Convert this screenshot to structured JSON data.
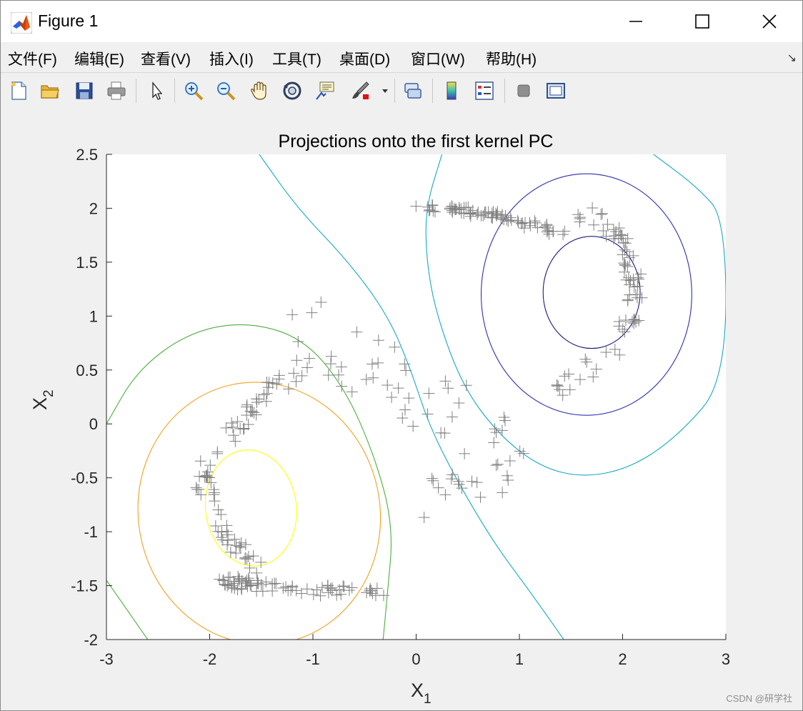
{
  "window": {
    "title": "Figure 1"
  },
  "menu": [
    "文件(F)",
    "编辑(E)",
    "查看(V)",
    "插入(I)",
    "工具(T)",
    "桌面(D)",
    "窗口(W)",
    "帮助(H)"
  ],
  "toolbar": {
    "buttons": [
      "new-figure",
      "open-file",
      "save-figure",
      "print-figure",
      "edit-plot",
      "zoom-in",
      "zoom-out",
      "pan",
      "rotate-3d",
      "data-cursor",
      "brush",
      "link-plot",
      "colorbar",
      "legend",
      "hide-plot-tools",
      "show-plot-tools"
    ]
  },
  "chart_data": {
    "type": "scatter",
    "title": "Projections onto the first kernel PC",
    "xlabel": "X",
    "xlabel_sub": "1",
    "ylabel": "X",
    "ylabel_sub": "2",
    "xlim": [
      -3,
      3
    ],
    "ylim": [
      -2,
      2.5
    ],
    "xticks": [
      -3,
      -2,
      -1,
      0,
      1,
      2,
      3
    ],
    "yticks": [
      -2,
      -1.5,
      -1,
      -0.5,
      0,
      0.5,
      1,
      1.5,
      2,
      2.5
    ],
    "xtick_labels": [
      "-3",
      "-2",
      "-1",
      "0",
      "1",
      "2",
      "3"
    ],
    "ytick_labels": [
      "-2",
      "-1.5",
      "-1",
      "-0.5",
      "0",
      "0.5",
      "1",
      "1.5",
      "2",
      "2.5"
    ],
    "grid": false,
    "marker": "+",
    "marker_color": "#808080",
    "contours": [
      {
        "shape": "ellipse",
        "cx": -1.6,
        "cy": -0.78,
        "rx": 0.44,
        "ry": 0.54,
        "tilt": -8,
        "color": "#ffff00"
      },
      {
        "shape": "ellipse",
        "cx": -1.52,
        "cy": -0.83,
        "rx": 1.17,
        "ry": 1.22,
        "tilt": -12,
        "color": "#f0a020"
      },
      {
        "shape": "curve",
        "color": "#4caf3c",
        "points": [
          [
            -3,
            -1.45
          ],
          [
            -2.6,
            -2
          ],
          [
            -3,
            0
          ],
          [
            -2.7,
            0.5
          ],
          [
            -2.2,
            0.85
          ],
          [
            -1.65,
            0.95
          ],
          [
            -1.1,
            0.8
          ],
          [
            -0.7,
            0.35
          ],
          [
            -0.4,
            -0.3
          ],
          [
            -0.22,
            -0.95
          ],
          [
            -0.28,
            -1.6
          ],
          [
            -0.32,
            -2
          ]
        ]
      },
      {
        "shape": "curve",
        "color": "#17a9c2",
        "points": [
          [
            -1.52,
            2.5
          ],
          [
            -1.15,
            2.0
          ],
          [
            -0.65,
            1.5
          ],
          [
            -0.27,
            1.0
          ],
          [
            -0.05,
            0.5
          ],
          [
            0.12,
            0.0
          ],
          [
            0.38,
            -0.5
          ],
          [
            0.75,
            -1.1
          ],
          [
            1.1,
            -1.55
          ],
          [
            1.43,
            -2.0
          ]
        ]
      },
      {
        "shape": "curve",
        "color": "#17a9c2",
        "points": [
          [
            0.25,
            2.5
          ],
          [
            0.09,
            2.0
          ],
          [
            0.1,
            1.5
          ],
          [
            0.2,
            1.0
          ],
          [
            0.45,
            0.35
          ],
          [
            0.8,
            -0.1
          ],
          [
            1.2,
            -0.4
          ],
          [
            1.63,
            -0.5
          ],
          [
            2.1,
            -0.4
          ],
          [
            2.55,
            -0.1
          ],
          [
            3.0,
            0.4
          ],
          [
            3.0,
            1.9
          ],
          [
            2.72,
            2.2
          ],
          [
            2.3,
            2.5
          ]
        ]
      },
      {
        "shape": "ellipse",
        "cx": 1.65,
        "cy": 1.2,
        "rx": 1.02,
        "ry": 1.12,
        "tilt": 0,
        "color": "#3030b0"
      },
      {
        "shape": "ellipse",
        "cx": 1.7,
        "cy": 1.22,
        "rx": 0.47,
        "ry": 0.52,
        "tilt": 0,
        "color": "#1a1a80"
      }
    ],
    "groups": [
      {
        "shape": "bottom-left-crescent",
        "n": 160,
        "seed": 7
      },
      {
        "shape": "top-right-crescent",
        "n": 160,
        "seed": 13
      },
      {
        "shape": "middle-bridge",
        "n": 60,
        "seed": 21
      }
    ]
  },
  "watermark": "CSDN @研学社"
}
